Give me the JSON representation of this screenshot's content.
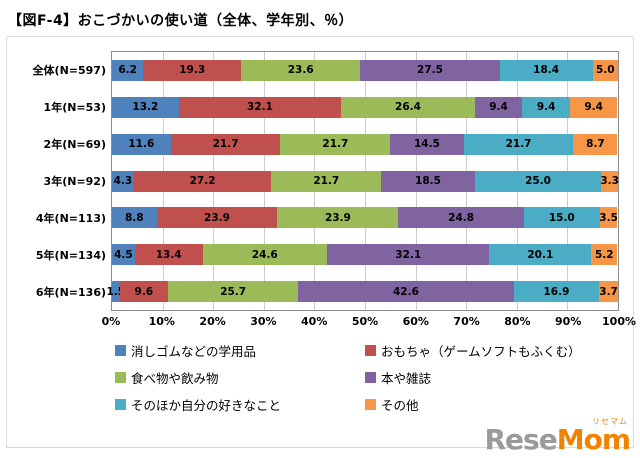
{
  "title": "【図F-4】おこづかいの使い道（全体、学年別、％）",
  "watermark": {
    "part1": "Rese",
    "part2": "Mom",
    "ruby": "リセマム"
  },
  "chart_data": {
    "type": "bar",
    "stacked": true,
    "orientation": "horizontal",
    "title": "【図F-4】おこづかいの使い道（全体、学年別、％）",
    "categories": [
      "全体(N=597)",
      "1年(N=53)",
      "2年(N=69)",
      "3年(N=92)",
      "4年(N=113)",
      "5年(N=134)",
      "6年(N=136)"
    ],
    "series": [
      {
        "name": "消しゴムなどの学用品",
        "color": "#4F81BD",
        "values": [
          6.2,
          13.2,
          11.6,
          4.3,
          8.8,
          4.5,
          1.5
        ]
      },
      {
        "name": "おもちゃ（ゲームソフトもふくむ）",
        "color": "#C0504D",
        "values": [
          19.3,
          32.1,
          21.7,
          27.2,
          23.9,
          13.4,
          9.6
        ]
      },
      {
        "name": "食べ物や飲み物",
        "color": "#9BBB59",
        "values": [
          23.6,
          26.4,
          21.7,
          21.7,
          23.9,
          24.6,
          25.7
        ]
      },
      {
        "name": "本や雑誌",
        "color": "#8064A2",
        "values": [
          27.5,
          9.4,
          14.5,
          18.5,
          24.8,
          32.1,
          42.6
        ]
      },
      {
        "name": "そのほか自分の好きなこと",
        "color": "#4BACC6",
        "values": [
          18.4,
          9.4,
          21.7,
          25.0,
          15.0,
          20.1,
          16.9
        ]
      },
      {
        "name": "その他",
        "color": "#F79646",
        "values": [
          5.0,
          9.4,
          8.7,
          3.3,
          3.5,
          5.2,
          3.7
        ]
      }
    ],
    "x_ticks": [
      "0%",
      "10%",
      "20%",
      "30%",
      "40%",
      "50%",
      "60%",
      "70%",
      "80%",
      "90%",
      "100%"
    ],
    "xlim": [
      0,
      100
    ],
    "grid": true,
    "legend_position": "bottom"
  }
}
